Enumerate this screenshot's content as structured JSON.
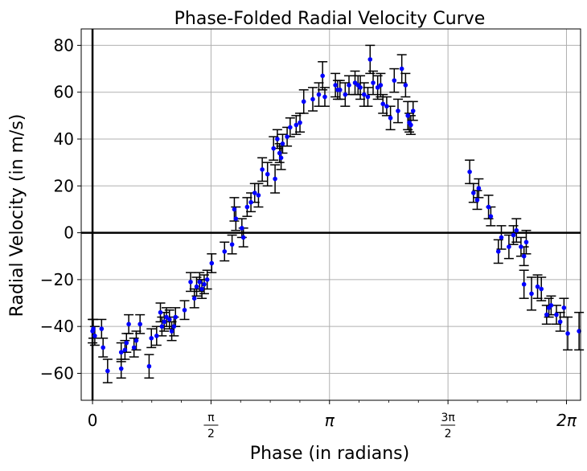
{
  "chart_data": {
    "type": "scatter",
    "title": "Phase-Folded Radial Velocity Curve",
    "xlabel": "Phase (in radians)",
    "ylabel": "Radial Velocity (in m/s)",
    "xlim": [
      -0.15,
      6.47
    ],
    "ylim": [
      -71.5,
      87
    ],
    "grid": true,
    "x_ticks": [
      {
        "value": 0,
        "label": "0"
      },
      {
        "value": 1.5708,
        "label": "π/2",
        "frac": true,
        "num": "π",
        "den": "2"
      },
      {
        "value": 3.1416,
        "label": "π"
      },
      {
        "value": 4.7124,
        "label": "3π/2",
        "frac": true,
        "num": "3π",
        "den": "2"
      },
      {
        "value": 6.2832,
        "label": "2π"
      }
    ],
    "y_ticks": [
      -60,
      -40,
      -20,
      0,
      20,
      40,
      60,
      80
    ],
    "y_tick_labels": [
      "−60",
      "−40",
      "−20",
      "0",
      "20",
      "40",
      "60",
      "80"
    ],
    "series": [
      {
        "marker_color": "#0000ff",
        "errorbar_color": "#000000",
        "points": [
          [
            0.0,
            -42,
            5
          ],
          [
            0.01,
            -41,
            4
          ],
          [
            0.03,
            -44,
            4
          ],
          [
            0.12,
            -41,
            4
          ],
          [
            0.14,
            -49,
            4
          ],
          [
            0.2,
            -59,
            5
          ],
          [
            0.38,
            -58,
            4
          ],
          [
            0.38,
            -51,
            4
          ],
          [
            0.43,
            -50,
            4
          ],
          [
            0.45,
            -47,
            4
          ],
          [
            0.48,
            -39,
            4
          ],
          [
            0.55,
            -49,
            4
          ],
          [
            0.58,
            -46,
            4
          ],
          [
            0.63,
            -39,
            4
          ],
          [
            0.75,
            -57,
            5
          ],
          [
            0.78,
            -45,
            4
          ],
          [
            0.85,
            -44,
            4
          ],
          [
            0.9,
            -34,
            4
          ],
          [
            0.92,
            -40,
            4
          ],
          [
            0.95,
            -38,
            4
          ],
          [
            0.98,
            -36,
            4
          ],
          [
            1.02,
            -37,
            4
          ],
          [
            1.05,
            -42,
            4
          ],
          [
            1.08,
            -40,
            4
          ],
          [
            1.1,
            -36,
            4
          ],
          [
            1.22,
            -33,
            4
          ],
          [
            1.3,
            -21,
            4
          ],
          [
            1.35,
            -28,
            4
          ],
          [
            1.38,
            -23,
            4
          ],
          [
            1.42,
            -21,
            4
          ],
          [
            1.45,
            -24,
            4
          ],
          [
            1.48,
            -22,
            4
          ],
          [
            1.52,
            -20,
            4
          ],
          [
            1.58,
            -13,
            4
          ],
          [
            1.75,
            -8,
            4
          ],
          [
            1.85,
            -5,
            4
          ],
          [
            1.88,
            10,
            5
          ],
          [
            1.9,
            6,
            5
          ],
          [
            1.98,
            2,
            4
          ],
          [
            2.0,
            -2,
            4
          ],
          [
            2.05,
            11,
            4
          ],
          [
            2.1,
            13,
            4
          ],
          [
            2.15,
            17,
            4
          ],
          [
            2.2,
            16,
            5
          ],
          [
            2.25,
            27,
            5
          ],
          [
            2.32,
            25,
            5
          ],
          [
            2.4,
            36,
            5
          ],
          [
            2.42,
            23,
            6
          ],
          [
            2.45,
            40,
            4
          ],
          [
            2.48,
            34,
            4
          ],
          [
            2.5,
            32,
            5
          ],
          [
            2.52,
            38,
            4
          ],
          [
            2.58,
            41,
            4
          ],
          [
            2.62,
            45,
            4
          ],
          [
            2.7,
            46,
            4
          ],
          [
            2.75,
            47,
            4
          ],
          [
            2.8,
            56,
            5
          ],
          [
            2.92,
            57,
            5
          ],
          [
            3.0,
            59,
            5
          ],
          [
            3.05,
            67,
            6
          ],
          [
            3.08,
            58,
            4
          ],
          [
            3.22,
            63,
            5
          ],
          [
            3.25,
            61,
            4
          ],
          [
            3.28,
            61,
            4
          ],
          [
            3.35,
            59,
            5
          ],
          [
            3.4,
            63,
            4
          ],
          [
            3.48,
            64,
            5
          ],
          [
            3.52,
            63,
            4
          ],
          [
            3.55,
            62,
            5
          ],
          [
            3.6,
            59,
            5
          ],
          [
            3.65,
            58,
            4
          ],
          [
            3.68,
            74,
            6
          ],
          [
            3.72,
            64,
            5
          ],
          [
            3.78,
            62,
            5
          ],
          [
            3.82,
            63,
            5
          ],
          [
            3.85,
            55,
            4
          ],
          [
            3.9,
            54,
            4
          ],
          [
            3.95,
            49,
            5
          ],
          [
            4.0,
            65,
            5
          ],
          [
            4.05,
            52,
            5
          ],
          [
            4.1,
            70,
            6
          ],
          [
            4.15,
            63,
            5
          ],
          [
            4.18,
            50,
            6
          ],
          [
            4.2,
            47,
            4
          ],
          [
            4.22,
            46,
            4
          ],
          [
            4.25,
            52,
            4
          ],
          [
            5.0,
            26,
            5
          ],
          [
            5.05,
            17,
            4
          ],
          [
            5.1,
            14,
            4
          ],
          [
            5.12,
            19,
            4
          ],
          [
            5.25,
            11,
            5
          ],
          [
            5.28,
            7,
            4
          ],
          [
            5.38,
            -8,
            5
          ],
          [
            5.42,
            -2,
            5
          ],
          [
            5.52,
            -6,
            5
          ],
          [
            5.58,
            -1,
            4
          ],
          [
            5.62,
            1,
            5
          ],
          [
            5.68,
            -6,
            4
          ],
          [
            5.72,
            -10,
            4
          ],
          [
            5.75,
            -4,
            5
          ],
          [
            5.72,
            -22,
            6
          ],
          [
            5.82,
            -26,
            7
          ],
          [
            5.9,
            -23,
            5
          ],
          [
            5.95,
            -24,
            5
          ],
          [
            6.02,
            -35,
            4
          ],
          [
            6.05,
            -32,
            4
          ],
          [
            6.08,
            -31,
            4
          ],
          [
            6.15,
            -35,
            4
          ],
          [
            6.2,
            -38,
            4
          ],
          [
            6.25,
            -32,
            4
          ],
          [
            6.3,
            -43,
            7
          ],
          [
            6.45,
            -42,
            8
          ]
        ]
      }
    ]
  }
}
